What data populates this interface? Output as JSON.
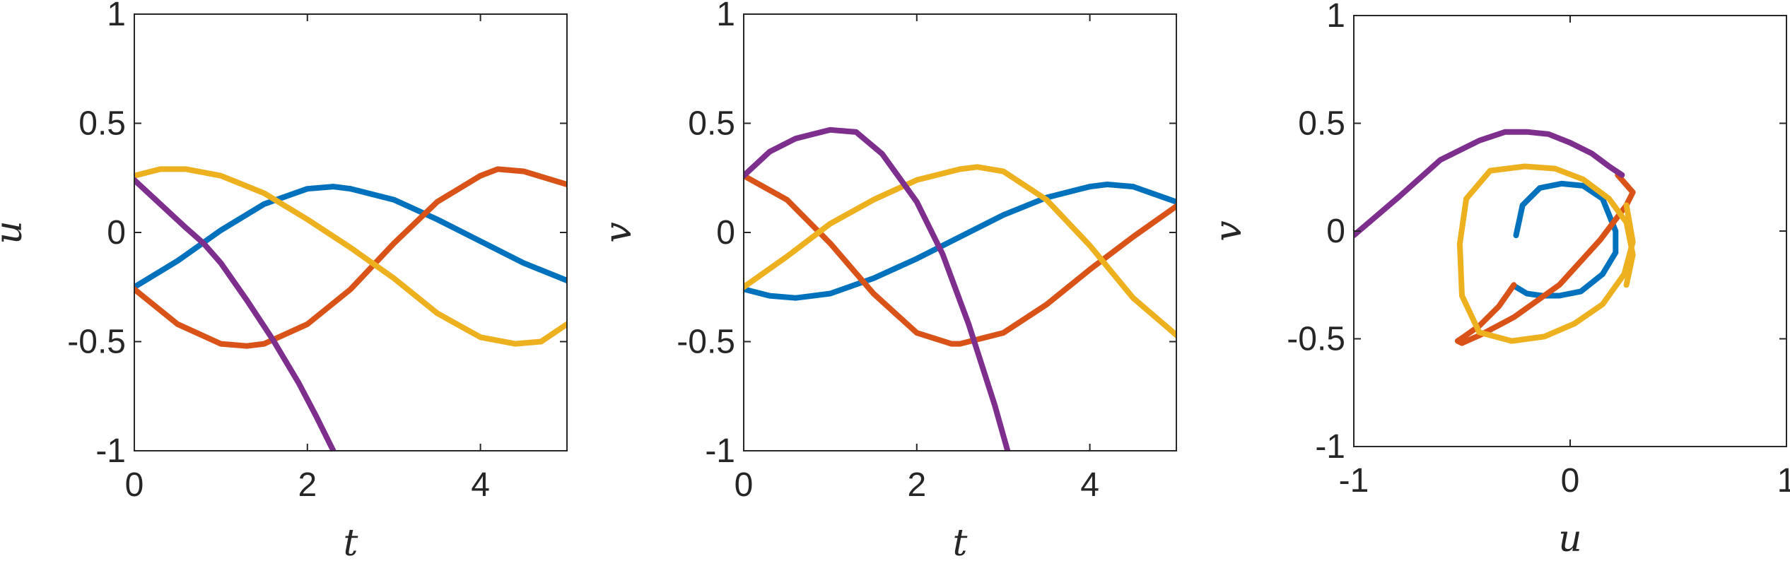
{
  "colors": {
    "series": [
      "#0072BD",
      "#D95319",
      "#EDB120",
      "#7E2F8E"
    ],
    "axis": "#262626",
    "background": "#ffffff"
  },
  "chart_data": [
    {
      "type": "line",
      "xlabel": "t",
      "ylabel": "u",
      "xlim": [
        0,
        5
      ],
      "ylim": [
        -1,
        1
      ],
      "xticks": [
        "0",
        "2",
        "4"
      ],
      "yticks": [
        "-1",
        "-0.5",
        "0",
        "0.5",
        "1"
      ],
      "grid": false,
      "series": [
        {
          "x": [
            0,
            0.5,
            1,
            1.5,
            2,
            2.3,
            2.5,
            3,
            3.5,
            4,
            4.5,
            5
          ],
          "y": [
            -0.25,
            -0.13,
            0.01,
            0.13,
            0.2,
            0.21,
            0.2,
            0.15,
            0.06,
            -0.04,
            -0.14,
            -0.22
          ]
        },
        {
          "x": [
            0,
            0.5,
            1,
            1.3,
            1.5,
            2,
            2.5,
            3,
            3.5,
            4,
            4.2,
            4.5,
            5
          ],
          "y": [
            -0.26,
            -0.42,
            -0.51,
            -0.52,
            -0.51,
            -0.42,
            -0.26,
            -0.05,
            0.14,
            0.26,
            0.29,
            0.28,
            0.22
          ]
        },
        {
          "x": [
            0,
            0.3,
            0.6,
            1,
            1.5,
            2,
            2.5,
            3,
            3.5,
            4,
            4.4,
            4.7,
            5
          ],
          "y": [
            0.26,
            0.29,
            0.29,
            0.26,
            0.18,
            0.06,
            -0.07,
            -0.21,
            -0.37,
            -0.48,
            -0.51,
            -0.5,
            -0.42
          ]
        },
        {
          "x": [
            0,
            0.3,
            0.6,
            0.8,
            1,
            1.3,
            1.6,
            1.9,
            2.1,
            2.3
          ],
          "y": [
            0.24,
            0.13,
            0.02,
            -0.05,
            -0.14,
            -0.31,
            -0.49,
            -0.69,
            -0.84,
            -1.0
          ]
        }
      ]
    },
    {
      "type": "line",
      "xlabel": "t",
      "ylabel": "v",
      "xlim": [
        0,
        5
      ],
      "ylim": [
        -1,
        1
      ],
      "xticks": [
        "0",
        "2",
        "4"
      ],
      "yticks": [
        "-1",
        "-0.5",
        "0",
        "0.5",
        "1"
      ],
      "grid": false,
      "series": [
        {
          "x": [
            0,
            0.3,
            0.6,
            1,
            1.5,
            2,
            2.5,
            3,
            3.5,
            4,
            4.2,
            4.5,
            5
          ],
          "y": [
            -0.26,
            -0.29,
            -0.3,
            -0.28,
            -0.21,
            -0.12,
            -0.02,
            0.08,
            0.16,
            0.21,
            0.22,
            0.21,
            0.14
          ]
        },
        {
          "x": [
            0,
            0.5,
            1,
            1.5,
            2,
            2.4,
            2.5,
            3,
            3.5,
            4,
            4.5,
            5
          ],
          "y": [
            0.26,
            0.15,
            -0.05,
            -0.28,
            -0.46,
            -0.51,
            -0.51,
            -0.46,
            -0.33,
            -0.17,
            -0.02,
            0.12
          ]
        },
        {
          "x": [
            0,
            0.5,
            1,
            1.5,
            2,
            2.5,
            2.7,
            3,
            3.5,
            4,
            4.5,
            5
          ],
          "y": [
            -0.25,
            -0.11,
            0.04,
            0.15,
            0.24,
            0.29,
            0.3,
            0.28,
            0.15,
            -0.06,
            -0.3,
            -0.47
          ]
        },
        {
          "x": [
            0,
            0.3,
            0.6,
            1,
            1.3,
            1.6,
            2,
            2.3,
            2.6,
            2.9,
            3.05
          ],
          "y": [
            0.26,
            0.37,
            0.43,
            0.47,
            0.46,
            0.36,
            0.14,
            -0.1,
            -0.42,
            -0.79,
            -1.0
          ]
        }
      ]
    },
    {
      "type": "line",
      "xlabel": "u",
      "ylabel": "v",
      "xlim": [
        -1,
        1
      ],
      "ylim": [
        -1,
        1
      ],
      "xticks": [
        "-1",
        "0",
        "1"
      ],
      "yticks": [
        "-1",
        "-0.5",
        "0",
        "0.5",
        "1"
      ],
      "grid": false,
      "series": [
        {
          "x": [
            -0.25,
            -0.2,
            -0.13,
            -0.05,
            0.05,
            0.15,
            0.21,
            0.21,
            0.15,
            0.06,
            -0.04,
            -0.14,
            -0.22,
            -0.25
          ],
          "y": [
            -0.26,
            -0.29,
            -0.3,
            -0.3,
            -0.28,
            -0.2,
            -0.1,
            0.0,
            0.15,
            0.21,
            0.22,
            0.2,
            0.12,
            -0.02
          ]
        },
        {
          "x": [
            -0.26,
            -0.33,
            -0.42,
            -0.49,
            -0.52,
            -0.5,
            -0.41,
            -0.26,
            -0.05,
            0.14,
            0.26,
            0.29,
            0.22
          ],
          "y": [
            -0.25,
            -0.35,
            -0.44,
            -0.49,
            -0.51,
            -0.52,
            -0.48,
            -0.4,
            -0.25,
            -0.04,
            0.12,
            0.18,
            0.26
          ]
        },
        {
          "x": [
            0.26,
            0.29,
            0.26,
            0.18,
            0.06,
            -0.07,
            -0.21,
            -0.37,
            -0.48,
            -0.51,
            -0.5,
            -0.42,
            -0.27,
            -0.12,
            0.02,
            0.15,
            0.25,
            0.29,
            0.26
          ],
          "y": [
            -0.25,
            -0.11,
            0.04,
            0.15,
            0.24,
            0.29,
            0.3,
            0.28,
            0.15,
            -0.06,
            -0.3,
            -0.47,
            -0.51,
            -0.49,
            -0.43,
            -0.34,
            -0.2,
            -0.05,
            0.12
          ]
        },
        {
          "x": [
            -1.0,
            -0.79,
            -0.6,
            -0.42,
            -0.3,
            -0.2,
            -0.1,
            0.0,
            0.1,
            0.18,
            0.24
          ],
          "y": [
            -0.02,
            0.16,
            0.33,
            0.42,
            0.46,
            0.46,
            0.45,
            0.41,
            0.36,
            0.3,
            0.26
          ]
        }
      ]
    }
  ]
}
